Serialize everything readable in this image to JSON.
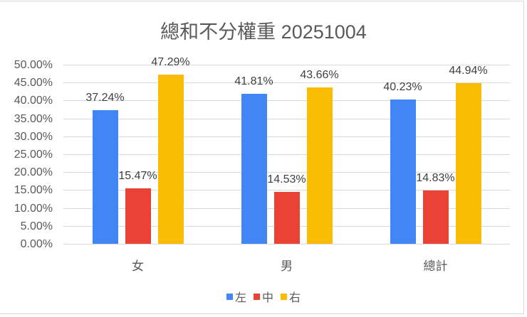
{
  "chart_data": {
    "type": "bar",
    "title": "總和不分權重 20251004",
    "categories": [
      "女",
      "男",
      "總計"
    ],
    "series": [
      {
        "name": "左",
        "color": "#4285f4",
        "values": [
          37.24,
          41.81,
          40.23
        ],
        "labels": [
          "37.24%",
          "41.81%",
          "40.23%"
        ]
      },
      {
        "name": "中",
        "color": "#ea4335",
        "values": [
          15.47,
          14.53,
          14.83
        ],
        "labels": [
          "15.47%",
          "14.53%",
          "14.83%"
        ]
      },
      {
        "name": "右",
        "color": "#fbbc04",
        "values": [
          47.29,
          43.66,
          44.94
        ],
        "labels": [
          "47.29%",
          "43.66%",
          "44.94%"
        ]
      }
    ],
    "xlabel": "",
    "ylabel": "",
    "ylim": [
      0,
      50
    ],
    "yticks": [
      "0.00%",
      "5.00%",
      "10.00%",
      "15.00%",
      "20.00%",
      "25.00%",
      "30.00%",
      "35.00%",
      "40.00%",
      "45.00%",
      "50.00%"
    ],
    "grid": true,
    "legend_position": "bottom"
  }
}
